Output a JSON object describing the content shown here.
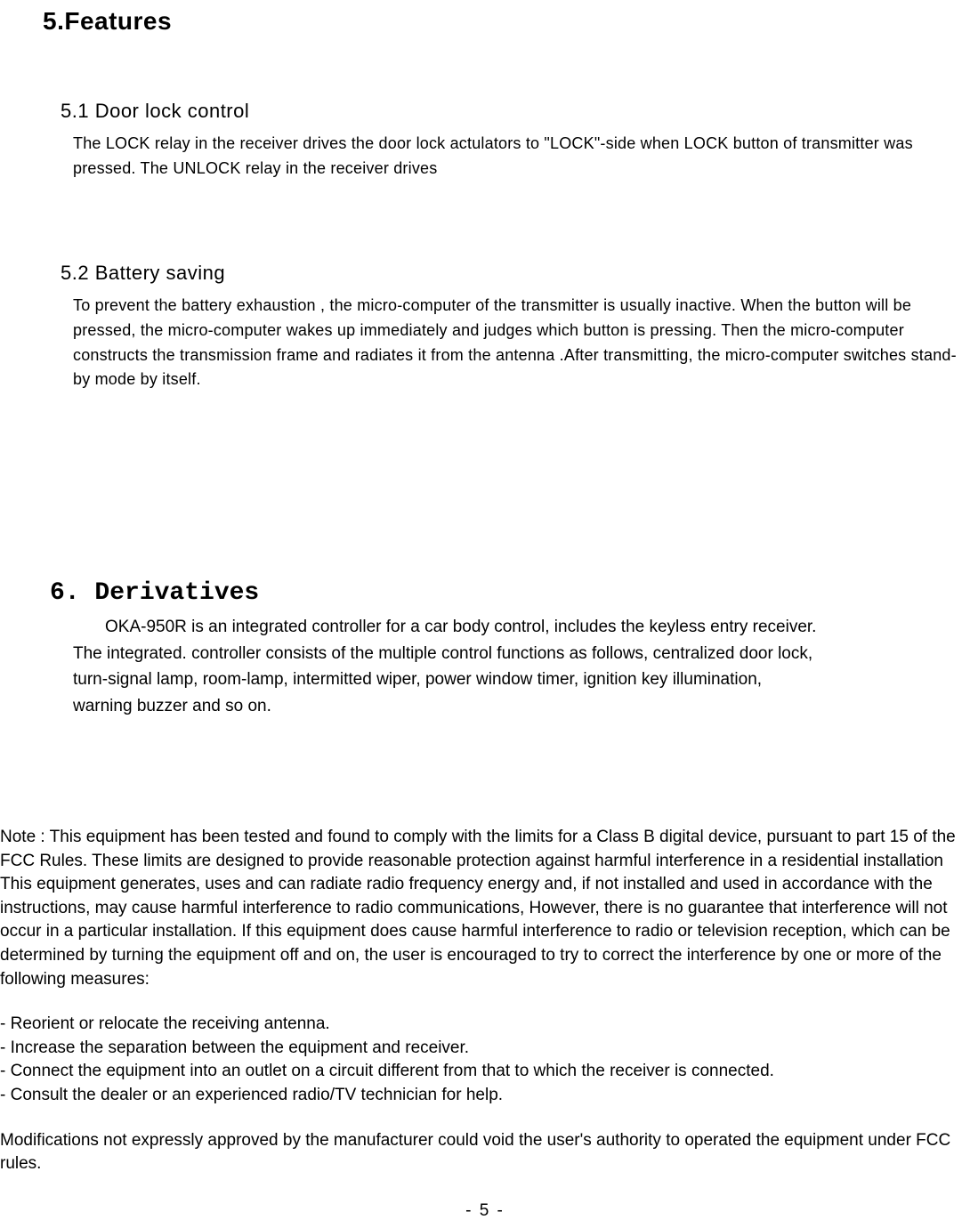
{
  "section5": {
    "title": "5.Features",
    "sub1": {
      "title": "5.1 Door lock control",
      "body": "The LOCK relay in the receiver drives   the door lock actulators to \"LOCK\"-side when LOCK button of transmitter was pressed. The UNLOCK relay in the receiver drives"
    },
    "sub2": {
      "title": "5.2    Battery saving",
      "body": "To prevent the battery exhaustion , the micro-computer of the transmitter is usually inactive. When the button will be pressed, the micro-computer wakes up immediately and judges which button is pressing. Then the micro-computer constructs the transmission frame and radiates it from the antenna .After transmitting, the micro-computer switches stand-by mode by itself."
    }
  },
  "section6": {
    "title": "6. Derivatives",
    "body_line1": "OKA-950R is an integrated controller for a car body control, includes the keyless entry receiver.",
    "body_line2": "The integrated. controller consists of the multiple control functions as follows, centralized door lock,",
    "body_line3": "turn-signal lamp, room-lamp, intermitted wiper, power window timer, ignition key illumination,",
    "body_line4": "warning buzzer and so on."
  },
  "note": {
    "main": "Note : This equipment has been tested and found to comply with the limits for a Class B digital device, pursuant to part 15 of the FCC Rules. These limits are designed to provide reasonable protection against harmful interference in a residential installation This equipment generates, uses and can radiate radio frequency energy and, if not installed and used in accordance with the instructions, may cause harmful interference to radio communications, However, there is no guarantee that interference will not occur in a particular installation. If this equipment does cause harmful interference to radio or television reception, which can be determined by turning the equipment off and on, the user is encouraged to try to correct the interference by one or more of the following measures:",
    "measure1": "- Reorient or relocate the receiving antenna.",
    "measure2": "- Increase the separation between the equipment and receiver.",
    "measure3": "- Connect the equipment into an outlet on a circuit different from that to which the receiver is connected.",
    "measure4": "- Consult the dealer or an experienced radio/TV technician for help.",
    "modifications": "Modifications not expressly approved by the manufacturer could void the user's authority to operated the equipment under FCC rules."
  },
  "page_number": "- 5 -",
  "colors": {
    "background": "#ffffff",
    "text": "#000000"
  },
  "typography": {
    "title_fontsize": 28,
    "subsection_fontsize": 22,
    "body_fontsize_1": 18,
    "body_fontsize_2": 19
  }
}
